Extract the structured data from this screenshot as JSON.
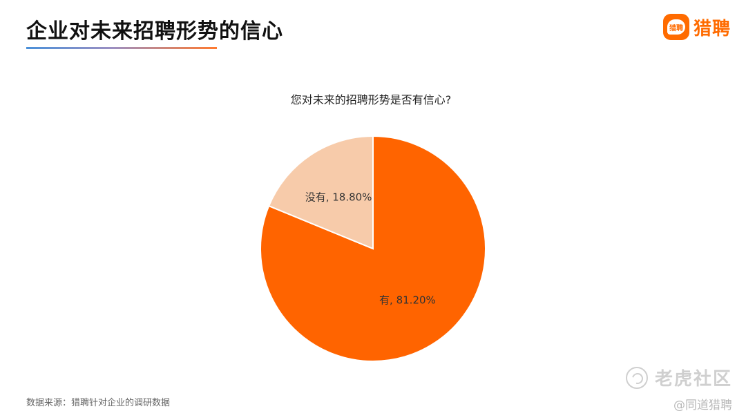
{
  "header": {
    "title": "企业对未来招聘形势的信心",
    "logo_badge": "猎聘",
    "logo_text": "猎聘"
  },
  "chart_data": {
    "type": "pie",
    "title": "您对未来的招聘形势是否有信心?",
    "slices": [
      {
        "label": "有",
        "value": 81.2,
        "display": "有, 81.20%",
        "color": "#ff6400"
      },
      {
        "label": "没有",
        "value": 18.8,
        "display": "没有, 18.80%",
        "color": "#f7cbaa"
      }
    ]
  },
  "footer": {
    "source": "数据来源：猎聘针对企业的调研数据",
    "watermark": "老虎社区",
    "attribution": "@同道猎聘"
  }
}
